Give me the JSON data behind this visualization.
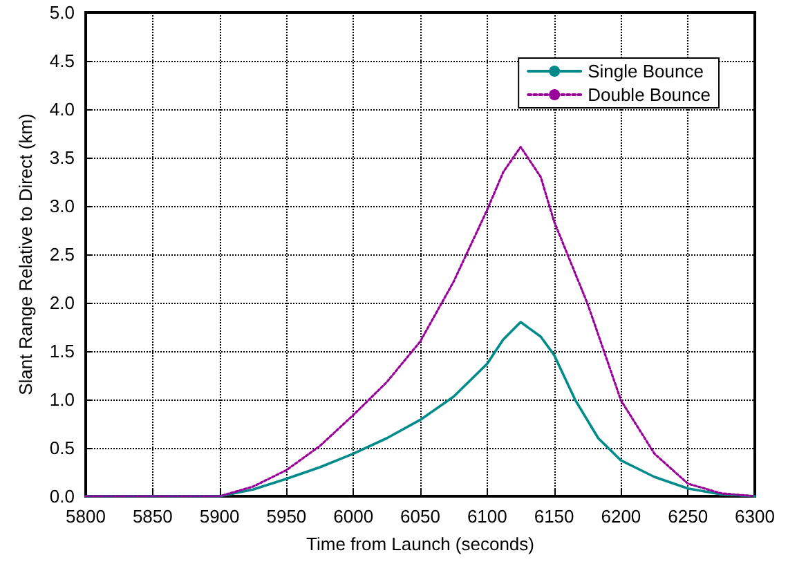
{
  "chart_data": {
    "type": "line",
    "xlabel": "Time from Launch (seconds)",
    "ylabel": "Slant Range Relative to Direct (km)",
    "xlim": [
      5800,
      6300
    ],
    "xticks": [
      5800,
      5850,
      5900,
      5950,
      6000,
      6050,
      6100,
      6150,
      6200,
      6250,
      6300
    ],
    "ylim": [
      0,
      5
    ],
    "yticks": [
      {
        "value": 0,
        "label": "0.0"
      },
      {
        "value": 0.5,
        "label": "0.5"
      },
      {
        "value": 1,
        "label": "1.0"
      },
      {
        "value": 1.5,
        "label": "1.5"
      },
      {
        "value": 2,
        "label": "2.0"
      },
      {
        "value": 2.5,
        "label": "2.5"
      },
      {
        "value": 3,
        "label": "3.0"
      },
      {
        "value": 3.5,
        "label": "3.5"
      },
      {
        "value": 4,
        "label": "4.0"
      },
      {
        "value": 4.5,
        "label": "4.5"
      },
      {
        "value": 5,
        "label": "5.0"
      }
    ],
    "grid": true,
    "legend": "top right",
    "marker": "none",
    "series": [
      {
        "name": "Single Bounce",
        "color": "#008b8b",
        "line_style": "solid",
        "x": [
          5800,
          5900,
          5925,
          5950,
          5975,
          6000,
          6025,
          6050,
          6075,
          6100,
          6112,
          6125,
          6140,
          6150,
          6166,
          6183,
          6200,
          6225,
          6250,
          6275,
          6300
        ],
        "values": [
          0,
          0,
          0.07,
          0.18,
          0.3,
          0.44,
          0.6,
          0.79,
          1.03,
          1.37,
          1.62,
          1.8,
          1.65,
          1.46,
          0.99,
          0.6,
          0.37,
          0.2,
          0.08,
          0.02,
          0
        ]
      },
      {
        "name": "Double Bounce",
        "color": "#990099",
        "line_style": "dotted",
        "x": [
          5800,
          5900,
          5925,
          5950,
          5975,
          6000,
          6025,
          6050,
          6075,
          6100,
          6112,
          6125,
          6140,
          6150,
          6175,
          6200,
          6225,
          6250,
          6275,
          6300
        ],
        "values": [
          0,
          0,
          0.1,
          0.27,
          0.52,
          0.84,
          1.18,
          1.6,
          2.22,
          2.96,
          3.35,
          3.61,
          3.3,
          2.84,
          1.99,
          0.99,
          0.44,
          0.13,
          0.03,
          0
        ]
      }
    ]
  }
}
